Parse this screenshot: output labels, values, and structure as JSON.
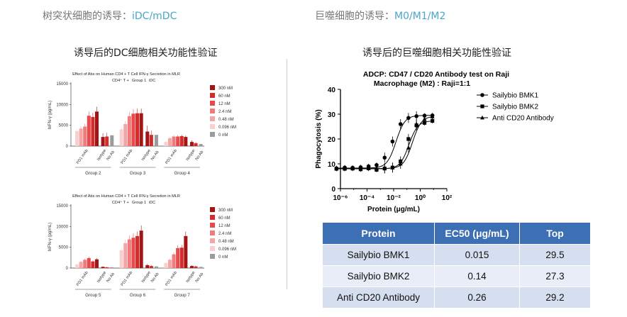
{
  "header": {
    "left_prefix": "树突状细胞的诱导：",
    "left_accent": "iDC/mDC",
    "right_prefix": "巨噬细胞的诱导：",
    "right_accent": "M0/M1/M2"
  },
  "left": {
    "subtitle": "诱导后的DC细胞相关功能性验证",
    "legend": [
      "300 nM",
      "60 nM",
      "12 nM",
      "2.4 nM",
      "0.48 nM",
      "0.096 nM",
      "0 nM"
    ],
    "legend_colors": [
      "#a31515",
      "#d42b2b",
      "#e8494a",
      "#ef7b7b",
      "#f4a6a6",
      "#f9cfcf",
      "#9b9b9b"
    ],
    "charts": [
      {
        "title": "Effect of Abs on Human CD4 + T Cell IFN-γ Secretion in MLR",
        "cond_a": "CD4⁺ T +",
        "cond_b": "Group 1",
        "cond_c": "iDC",
        "ylabel": "hIFN-γ (pg/mL)",
        "yticks": [
          "0",
          "5000",
          "10000",
          "15000"
        ],
        "ymax": 15000,
        "groups": [
          {
            "label": "Group 2",
            "ab1": "PD1 mAb",
            "ab2": "Isotype",
            "ab3": "No Ab",
            "pd1": [
              8300,
              7000,
              7300,
              4700,
              4200,
              3600
            ],
            "iso": [
              2200,
              2300
            ],
            "noab": 2600
          },
          {
            "label": "Group 3",
            "ab1": "PD1 mAb",
            "ab2": "Isotype",
            "ab3": "No Ab",
            "pd1": [
              7900,
              7900,
              7800,
              7200,
              5300,
              4000
            ],
            "iso": [
              3500,
              2700
            ],
            "noab": 2700
          },
          {
            "label": "Group 4",
            "ab1": "PD1 mAb",
            "ab2": "Isotype",
            "ab3": "No Ab",
            "pd1": [
              2200,
              2400,
              2300,
              2300,
              1900,
              1000
            ],
            "iso": [
              1000,
              700
            ],
            "noab": 500
          }
        ]
      },
      {
        "title": "Effect of Abs on Human CD4 + T Cell IFN-γ Secretion in MLR",
        "cond_a": "CD4⁺ T +",
        "cond_b": "Group 1",
        "cond_c": "iDC",
        "ylabel": "hIFN-γ (pg/mL)",
        "yticks": [
          "0",
          "5000",
          "10000",
          "15000"
        ],
        "ymax": 15000,
        "groups": [
          {
            "label": "Group 5",
            "ab1": "PD1 mAb",
            "ab2": "Isotype",
            "ab3": "No Ab",
            "pd1": [
              2100,
              1600,
              2400,
              2000,
              1500,
              900
            ],
            "iso": [
              300,
              200
            ],
            "noab": 200
          },
          {
            "label": "Group 6",
            "ab1": "PD1 mAb",
            "ab2": "Isotype",
            "ab3": "No Ab",
            "pd1": [
              9000,
              7700,
              7300,
              6900,
              6000,
              4300
            ],
            "iso": [
              700,
              500
            ],
            "noab": 400
          },
          {
            "label": "Group 7",
            "ab1": "PD1 mAb",
            "ab2": "Isotype",
            "ab3": "No Ab",
            "pd1": [
              7700,
              4900,
              4800,
              3300,
              2000,
              1200
            ],
            "iso": [
              500,
              400
            ],
            "noab": 300
          }
        ]
      }
    ]
  },
  "right": {
    "subtitle": "诱导后的巨噬细胞相关功能性验证",
    "table": {
      "headers": [
        "Protein",
        "EC50 (μg/mL)",
        "Top"
      ],
      "rows": [
        [
          "Sailybio BMK1",
          "0.015",
          "29.5"
        ],
        [
          "Sailybio BMK2",
          "0.14",
          "27.3"
        ],
        [
          "Anti CD20 Antibody",
          "0.26",
          "29.2"
        ]
      ]
    }
  },
  "chart_data": [
    {
      "type": "bar",
      "title": "Effect of Abs on Human CD4 + T Cell IFN-γ Secretion in MLR",
      "ylabel": "hIFN-γ (pg/mL)",
      "ylim": [
        0,
        15000
      ],
      "legend": "right",
      "categories": [
        "Group 2",
        "Group 3",
        "Group 4"
      ]
    },
    {
      "type": "bar",
      "title": "Effect of Abs on Human CD4 + T Cell IFN-γ Secretion in MLR",
      "ylabel": "hIFN-γ (pg/mL)",
      "ylim": [
        0,
        15000
      ],
      "legend": "right",
      "categories": [
        "Group 5",
        "Group 6",
        "Group 7"
      ]
    },
    {
      "type": "scatter",
      "title": "ADCP: CD47 / CD20 Antibody test on Raji",
      "subtitle": "Macrophage (M2) : Raji=1:1",
      "xlabel": "Protein (μg/mL)",
      "ylabel": "Phagocytosis (%)",
      "xscale": "log",
      "xlim": [
        1e-06,
        100
      ],
      "ylim": [
        0,
        40
      ],
      "xticks": [
        "10⁻⁶",
        "10⁻⁴",
        "10⁻²",
        "10⁰",
        "10²"
      ],
      "yticks": [
        "0",
        "10",
        "20",
        "30",
        "40"
      ],
      "legend": "top-right",
      "x": [
        5e-07,
        2.1e-06,
        8.2e-06,
        3.3e-05,
        0.00013,
        0.00052,
        0.0021,
        0.0082,
        0.033,
        0.13,
        0.52,
        2.1,
        8.2
      ],
      "series": [
        {
          "name": "Sailybio  BMK1",
          "marker": "circle",
          "bottom": 8.3,
          "top": 29.5,
          "ec50": 0.015,
          "values": [
            8.2,
            8.5,
            8.4,
            8.6,
            9.0,
            9.5,
            12.5,
            19.0,
            26.0,
            28.5,
            29.2,
            29.4,
            29.5
          ]
        },
        {
          "name": "Sailybio  BMK2",
          "marker": "square",
          "bottom": 8.0,
          "top": 27.3,
          "ec50": 0.14,
          "values": [
            8.0,
            8.0,
            8.1,
            7.8,
            8.2,
            7.6,
            8.1,
            8.5,
            11.0,
            20.0,
            25.5,
            26.5,
            27.3
          ]
        },
        {
          "name": "Anti CD20 Antibody",
          "marker": "triangle",
          "bottom": 8.1,
          "top": 29.2,
          "ec50": 0.26,
          "values": [
            8.1,
            8.2,
            8.1,
            8.0,
            8.1,
            8.2,
            8.3,
            8.5,
            10.0,
            16.5,
            26.0,
            28.0,
            29.0
          ]
        }
      ]
    }
  ]
}
